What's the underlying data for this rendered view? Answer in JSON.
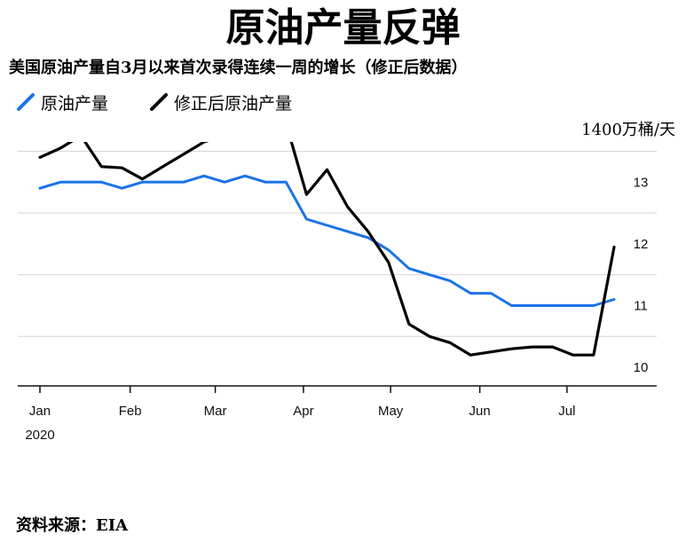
{
  "header": {
    "title": "原油产量反弹",
    "subtitle": "美国原油产量自3月以来首次录得连续一周的增长（修正后数据）"
  },
  "legend": [
    {
      "label": "原油产量",
      "color": "#1a73e8"
    },
    {
      "label": "修正后原油产量",
      "color": "#000000"
    }
  ],
  "unit_label": "1400万桶/天",
  "source": "资料来源：EIA",
  "chart_data": {
    "type": "line",
    "ylabel": "1400万桶/天",
    "ylim": [
      9.7,
      13.65
    ],
    "y_ticks": [
      {
        "value": 10,
        "label": "10"
      },
      {
        "value": 11,
        "label": "11"
      },
      {
        "value": 12,
        "label": "12"
      },
      {
        "value": 13,
        "label": "13"
      }
    ],
    "x_ticks": [
      {
        "week": 0,
        "label": "Jan"
      },
      {
        "week": 4.4,
        "label": "Feb"
      },
      {
        "week": 8.55,
        "label": "Mar"
      },
      {
        "week": 12.85,
        "label": "Apr"
      },
      {
        "week": 17.1,
        "label": "May"
      },
      {
        "week": 21.45,
        "label": "Jun"
      },
      {
        "week": 25.7,
        "label": "Jul"
      }
    ],
    "year_label": "2020",
    "series": [
      {
        "name": "原油产量",
        "color": "#1a73e8",
        "x": [
          0,
          1,
          2,
          3,
          4,
          5,
          6,
          7,
          8,
          9,
          10,
          11,
          12,
          13,
          14,
          15,
          16,
          17,
          18,
          19,
          20,
          21,
          22,
          23,
          24,
          25,
          26,
          27,
          28
        ],
        "values": [
          12.9,
          13.0,
          13.0,
          13.0,
          12.9,
          13.0,
          13.0,
          13.0,
          13.1,
          13.0,
          13.1,
          13.0,
          13.0,
          12.4,
          12.3,
          12.2,
          12.1,
          11.9,
          11.6,
          11.5,
          11.4,
          11.2,
          11.2,
          11.0,
          11.0,
          11.0,
          11.0,
          11.0,
          11.1
        ]
      },
      {
        "name": "修正后原油产量",
        "color": "#000000",
        "x": [
          0,
          1,
          2,
          3,
          4,
          5,
          6,
          7,
          8,
          9,
          10,
          11,
          12,
          13,
          14,
          15,
          16,
          17,
          18,
          19,
          20,
          21,
          22,
          23,
          24,
          25,
          26,
          27,
          28
        ],
        "values": [
          13.4,
          13.55,
          13.75,
          13.25,
          13.23,
          13.05,
          13.25,
          13.45,
          13.65,
          13.75,
          13.9,
          13.75,
          13.95,
          12.8,
          13.2,
          12.6,
          12.2,
          11.7,
          10.7,
          10.5,
          10.4,
          10.2,
          10.25,
          10.3,
          10.33,
          10.33,
          10.2,
          10.2,
          11.95
        ]
      }
    ]
  }
}
